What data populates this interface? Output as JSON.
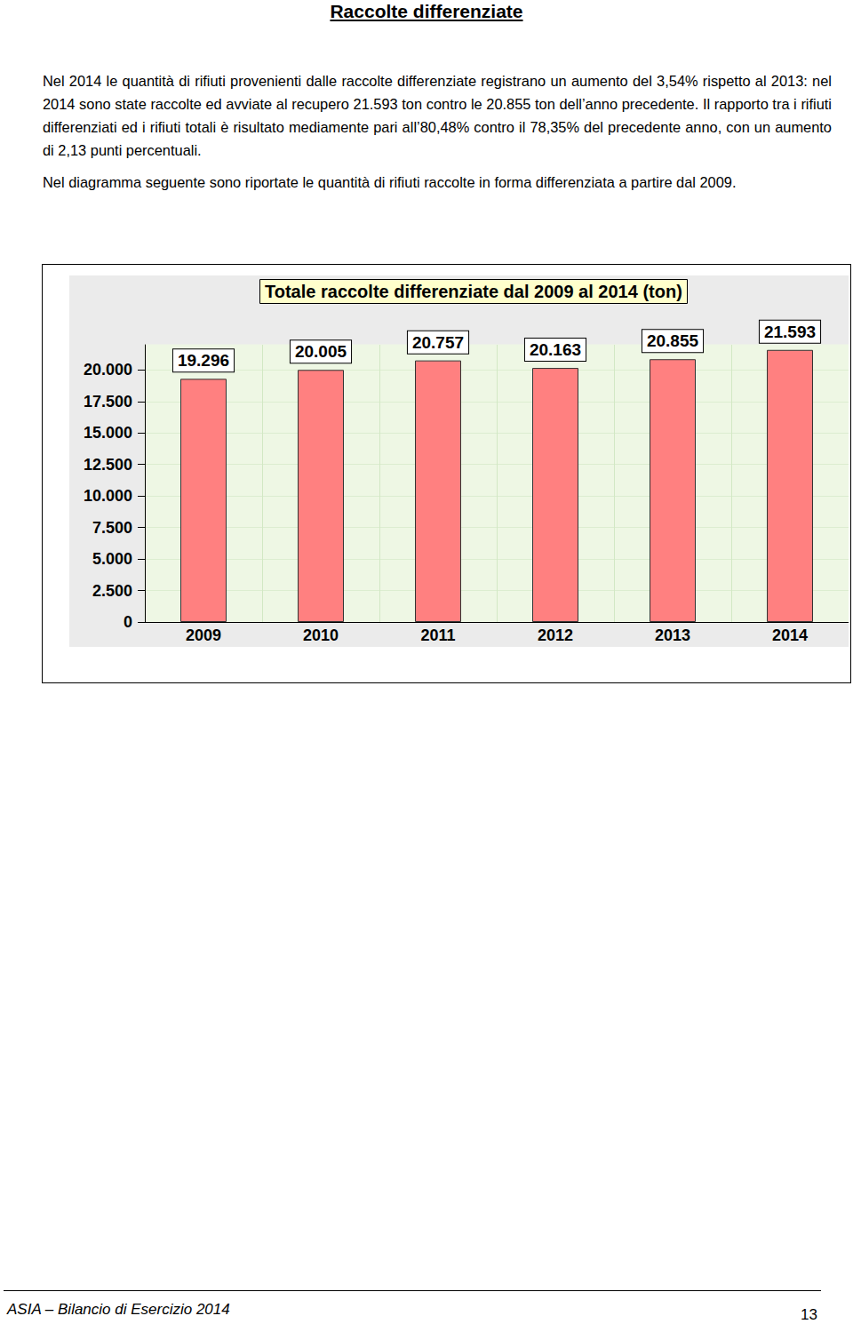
{
  "header": {
    "title": "Raccolte differenziate"
  },
  "paragraphs": [
    "Nel 2014 le quantità di rifiuti provenienti dalle raccolte differenziate registrano un aumento del 3,54% rispetto al 2013: nel 2014 sono state raccolte ed avviate al recupero 21.593 ton contro le 20.855 ton dell’anno precedente. Il rapporto tra i rifiuti differenziati ed i rifiuti totali è risultato mediamente pari all’80,48% contro il 78,35% del precedente anno, con un aumento di 2,13 punti percentuali.",
    "Nel diagramma seguente sono riportate le quantità di rifiuti raccolte in forma differenziata a partire dal 2009."
  ],
  "chart_data": {
    "type": "bar",
    "title": "Totale raccolte differenziate dal 2009 al 2014 (ton)",
    "categories": [
      "2009",
      "2010",
      "2011",
      "2012",
      "2013",
      "2014"
    ],
    "values": [
      19296,
      20005,
      20757,
      20163,
      20855,
      21593
    ],
    "value_labels": [
      "19.296",
      "20.005",
      "20.757",
      "20.163",
      "20.855",
      "21.593"
    ],
    "data_labels": true,
    "color": "#ff8080",
    "ylim": [
      0,
      22000
    ],
    "yticks": [
      0,
      {
        "value": 2500,
        "label": "2.500"
      },
      {
        "value": 5000,
        "label": "5.000"
      },
      {
        "value": 7500,
        "label": "7.500"
      },
      {
        "value": 10000,
        "label": "10.000"
      },
      {
        "value": 12500,
        "label": "12.500"
      },
      {
        "value": 15000,
        "label": "15.000"
      },
      {
        "value": 17500,
        "label": "17.500"
      },
      {
        "value": 20000,
        "label": "20.000"
      }
    ],
    "grid": true
  },
  "footer": {
    "left": "ASIA – Bilancio di Esercizio 2014",
    "page": 13
  }
}
